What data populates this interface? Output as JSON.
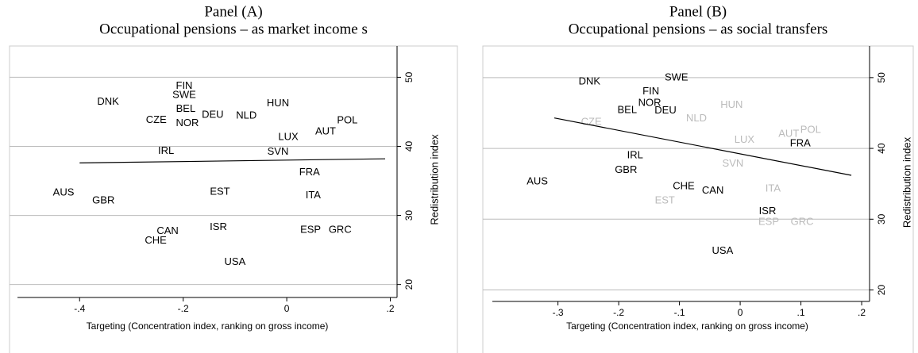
{
  "chart_data": [
    {
      "type": "scatter",
      "title": "Panel (A)",
      "subtitle": "Occupational pensions – as market income s",
      "x_label": "Targeting (Concentration index, ranking on gross income)",
      "y_label": "Redistribution index",
      "labels": [
        "DNK",
        "FIN",
        "SWE",
        "BEL",
        "CZE",
        "NOR",
        "DEU",
        "NLD",
        "HUN",
        "POL",
        "AUT",
        "LUX",
        "IRL",
        "SVN",
        "FRA",
        "AUS",
        "GBR",
        "EST",
        "ITA",
        "CAN",
        "CHE",
        "ISR",
        "ESP",
        "GRC",
        "USA"
      ],
      "x": [
        -0.345,
        -0.198,
        -0.198,
        -0.195,
        -0.252,
        -0.192,
        -0.143,
        -0.078,
        -0.017,
        0.117,
        0.075,
        0.003,
        -0.233,
        -0.017,
        0.044,
        -0.431,
        -0.354,
        -0.129,
        0.051,
        -0.23,
        -0.253,
        -0.132,
        0.046,
        0.103,
        -0.1
      ],
      "y": [
        46.4,
        48.7,
        47.4,
        45.4,
        43.8,
        43.3,
        44.5,
        44.4,
        46.2,
        43.7,
        42.1,
        41.3,
        39.3,
        39.2,
        36.2,
        33.3,
        32.1,
        33.4,
        32.9,
        27.7,
        26.3,
        28.3,
        27.9,
        27.9,
        23.2
      ],
      "colors": [
        "#000",
        "#000",
        "#000",
        "#000",
        "#000",
        "#000",
        "#000",
        "#000",
        "#000",
        "#000",
        "#000",
        "#000",
        "#000",
        "#000",
        "#000",
        "#000",
        "#000",
        "#000",
        "#000",
        "#000",
        "#000",
        "#000",
        "#000",
        "#000",
        "#000"
      ],
      "fit": {
        "x": [
          -0.4,
          0.19
        ],
        "y": [
          37.6,
          38.2
        ],
        "color": "#000"
      },
      "xlim": [
        -0.52,
        0.213
      ],
      "ylim": [
        19.5,
        52
      ],
      "xticks": [
        {
          "value": -0.4,
          "label": "-.4"
        },
        {
          "value": -0.2,
          "label": "-.2"
        },
        0,
        {
          "value": 0.2,
          "label": ".2"
        }
      ],
      "yticks": [
        20,
        30,
        40,
        50
      ],
      "grid": true
    },
    {
      "type": "scatter",
      "title": "Panel (B)",
      "subtitle": "Occupational pensions – as social transfers",
      "x_label": "Targeting (Concentration index, ranking on gross income)",
      "y_label": "Redistribution index",
      "labels": [
        "DNK",
        "SWE",
        "FIN",
        "NOR",
        "BEL",
        "DEU",
        "HUN",
        "NLD",
        "CZE",
        "AUT",
        "POL",
        "LUX",
        "FRA",
        "IRL",
        "GBR",
        "SVN",
        "AUS",
        "CHE",
        "CAN",
        "ITA",
        "EST",
        "ISR",
        "ESP",
        "GRC",
        "USA"
      ],
      "x": [
        -0.248,
        -0.105,
        -0.147,
        -0.149,
        -0.186,
        -0.123,
        -0.014,
        -0.072,
        -0.245,
        0.08,
        0.116,
        0.007,
        0.099,
        -0.173,
        -0.188,
        -0.012,
        -0.334,
        -0.093,
        -0.045,
        0.054,
        -0.124,
        0.045,
        0.047,
        0.102,
        -0.029
      ],
      "y": [
        49.4,
        50.0,
        48.0,
        46.4,
        45.4,
        45.3,
        46.1,
        44.2,
        43.7,
        42.0,
        42.6,
        41.2,
        40.7,
        39.0,
        36.9,
        37.8,
        35.3,
        34.6,
        34.0,
        34.3,
        32.6,
        31.1,
        29.6,
        29.6,
        25.5
      ],
      "colors": [
        "#000",
        "#000",
        "#000",
        "#000",
        "#000",
        "#000",
        "#bbb",
        "#bbb",
        "#bbb",
        "#bbb",
        "#bbb",
        "#bbb",
        "#000",
        "#000",
        "#000",
        "#bbb",
        "#000",
        "#000",
        "#000",
        "#bbb",
        "#bbb",
        "#000",
        "#bbb",
        "#bbb",
        "#000"
      ],
      "fit": {
        "x": [
          -0.306,
          0.183
        ],
        "y": [
          44.3,
          36.2
        ],
        "color": "#000"
      },
      "xlim": [
        -0.408,
        0.213
      ],
      "ylim": [
        19.5,
        52
      ],
      "xticks": [
        {
          "value": -0.3,
          "label": "-.3"
        },
        {
          "value": -0.2,
          "label": "-.2"
        },
        {
          "value": -0.1,
          "label": "-.1"
        },
        0,
        {
          "value": 0.1,
          "label": ".1"
        },
        {
          "value": 0.2,
          "label": ".2"
        }
      ],
      "yticks": [
        20,
        30,
        40,
        50
      ],
      "grid": true
    }
  ]
}
